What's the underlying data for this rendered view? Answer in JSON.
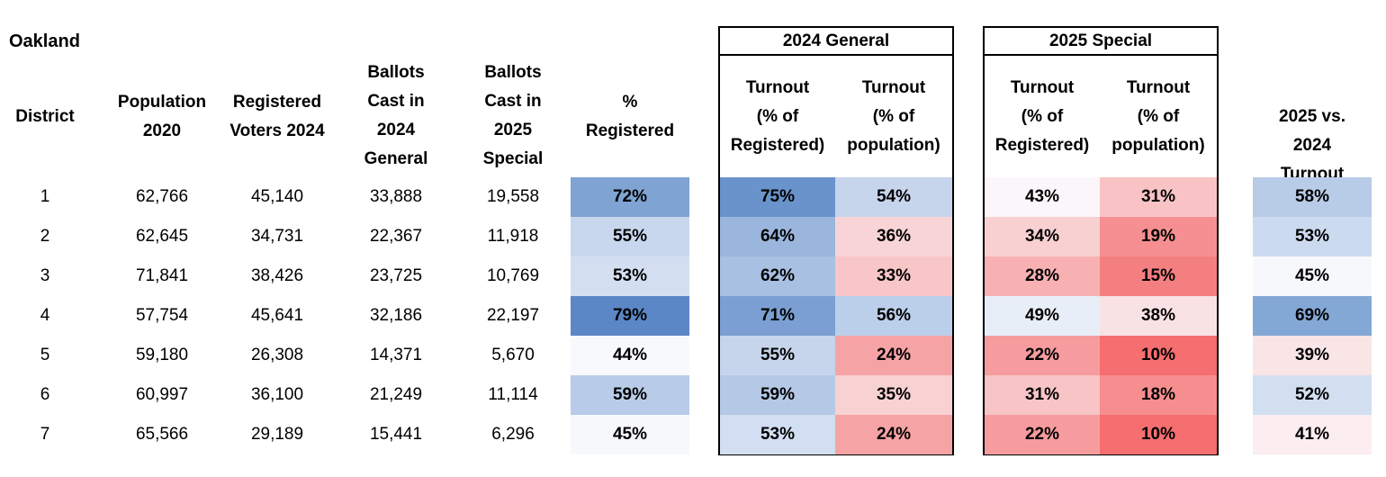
{
  "city": "Oakland",
  "headers": {
    "district": "District",
    "population": [
      "Population",
      "2020"
    ],
    "registered": [
      "Registered",
      "Voters 2024"
    ],
    "ballots2024": [
      "Ballots",
      "Cast in",
      "2024",
      "General"
    ],
    "ballots2025": [
      "Ballots",
      "Cast in",
      "2025",
      "Special"
    ],
    "pct_registered": [
      "%",
      "Registered"
    ],
    "general_title": "2024 General",
    "special_title": "2025 Special",
    "turnout_reg": [
      "Turnout",
      "(% of",
      "Registered)"
    ],
    "turnout_pop": [
      "Turnout",
      "(% of",
      "population)"
    ],
    "vs": [
      "2025 vs.",
      "2024",
      "Turnout"
    ]
  },
  "rows": [
    {
      "district": "1",
      "population": "62,766",
      "registered": "45,140",
      "ballots2024": "33,888",
      "ballots2025": "19,558",
      "pct_registered": "72%",
      "g_reg": "75%",
      "g_pop": "54%",
      "s_reg": "43%",
      "s_pop": "31%",
      "vs": "58%"
    },
    {
      "district": "2",
      "population": "62,645",
      "registered": "34,731",
      "ballots2024": "22,367",
      "ballots2025": "11,918",
      "pct_registered": "55%",
      "g_reg": "64%",
      "g_pop": "36%",
      "s_reg": "34%",
      "s_pop": "19%",
      "vs": "53%"
    },
    {
      "district": "3",
      "population": "71,841",
      "registered": "38,426",
      "ballots2024": "23,725",
      "ballots2025": "10,769",
      "pct_registered": "53%",
      "g_reg": "62%",
      "g_pop": "33%",
      "s_reg": "28%",
      "s_pop": "15%",
      "vs": "45%"
    },
    {
      "district": "4",
      "population": "57,754",
      "registered": "45,641",
      "ballots2024": "32,186",
      "ballots2025": "22,197",
      "pct_registered": "79%",
      "g_reg": "71%",
      "g_pop": "56%",
      "s_reg": "49%",
      "s_pop": "38%",
      "vs": "69%"
    },
    {
      "district": "5",
      "population": "59,180",
      "registered": "26,308",
      "ballots2024": "14,371",
      "ballots2025": "5,670",
      "pct_registered": "44%",
      "g_reg": "55%",
      "g_pop": "24%",
      "s_reg": "22%",
      "s_pop": "10%",
      "vs": "39%"
    },
    {
      "district": "6",
      "population": "60,997",
      "registered": "36,100",
      "ballots2024": "21,249",
      "ballots2025": "11,114",
      "pct_registered": "59%",
      "g_reg": "59%",
      "g_pop": "35%",
      "s_reg": "31%",
      "s_pop": "18%",
      "vs": "52%"
    },
    {
      "district": "7",
      "population": "65,566",
      "registered": "29,189",
      "ballots2024": "15,441",
      "ballots2025": "6,296",
      "pct_registered": "45%",
      "g_reg": "53%",
      "g_pop": "24%",
      "s_reg": "22%",
      "s_pop": "10%",
      "vs": "41%"
    }
  ],
  "fill_colors": {
    "pct_registered": [
      "#7fa3d2",
      "#c9d7ee",
      "#d3dff1",
      "#5b87c6",
      "#f8f9fd",
      "#b8cbe8",
      "#f7f8fc"
    ],
    "g_reg": [
      "#6a93cc",
      "#9bb6dd",
      "#a8c0e2",
      "#7b9fd2",
      "#c6d5ec",
      "#b5c9e7",
      "#d2def1"
    ],
    "g_pop": [
      "#c7d5ec",
      "#f9d4d6",
      "#f9c6c8",
      "#bccfea",
      "#f6a3a5",
      "#f8d1d3",
      "#f6a3a5"
    ],
    "s_reg": [
      "#fbf6f9",
      "#f8d0d1",
      "#f7b1b3",
      "#e8eef8",
      "#f69c9e",
      "#f8c4c6",
      "#f69c9e"
    ],
    "s_pop": [
      "#f9c3c5",
      "#f58f91",
      "#f47f81",
      "#f9e2e4",
      "#f56e70",
      "#f68d8f",
      "#f56e70"
    ],
    "vs": [
      "#b8cbe7",
      "#ccdaef",
      "#f7f8fc",
      "#84a8d5",
      "#f9e4e6",
      "#d2dff1",
      "#fbedf0"
    ]
  }
}
